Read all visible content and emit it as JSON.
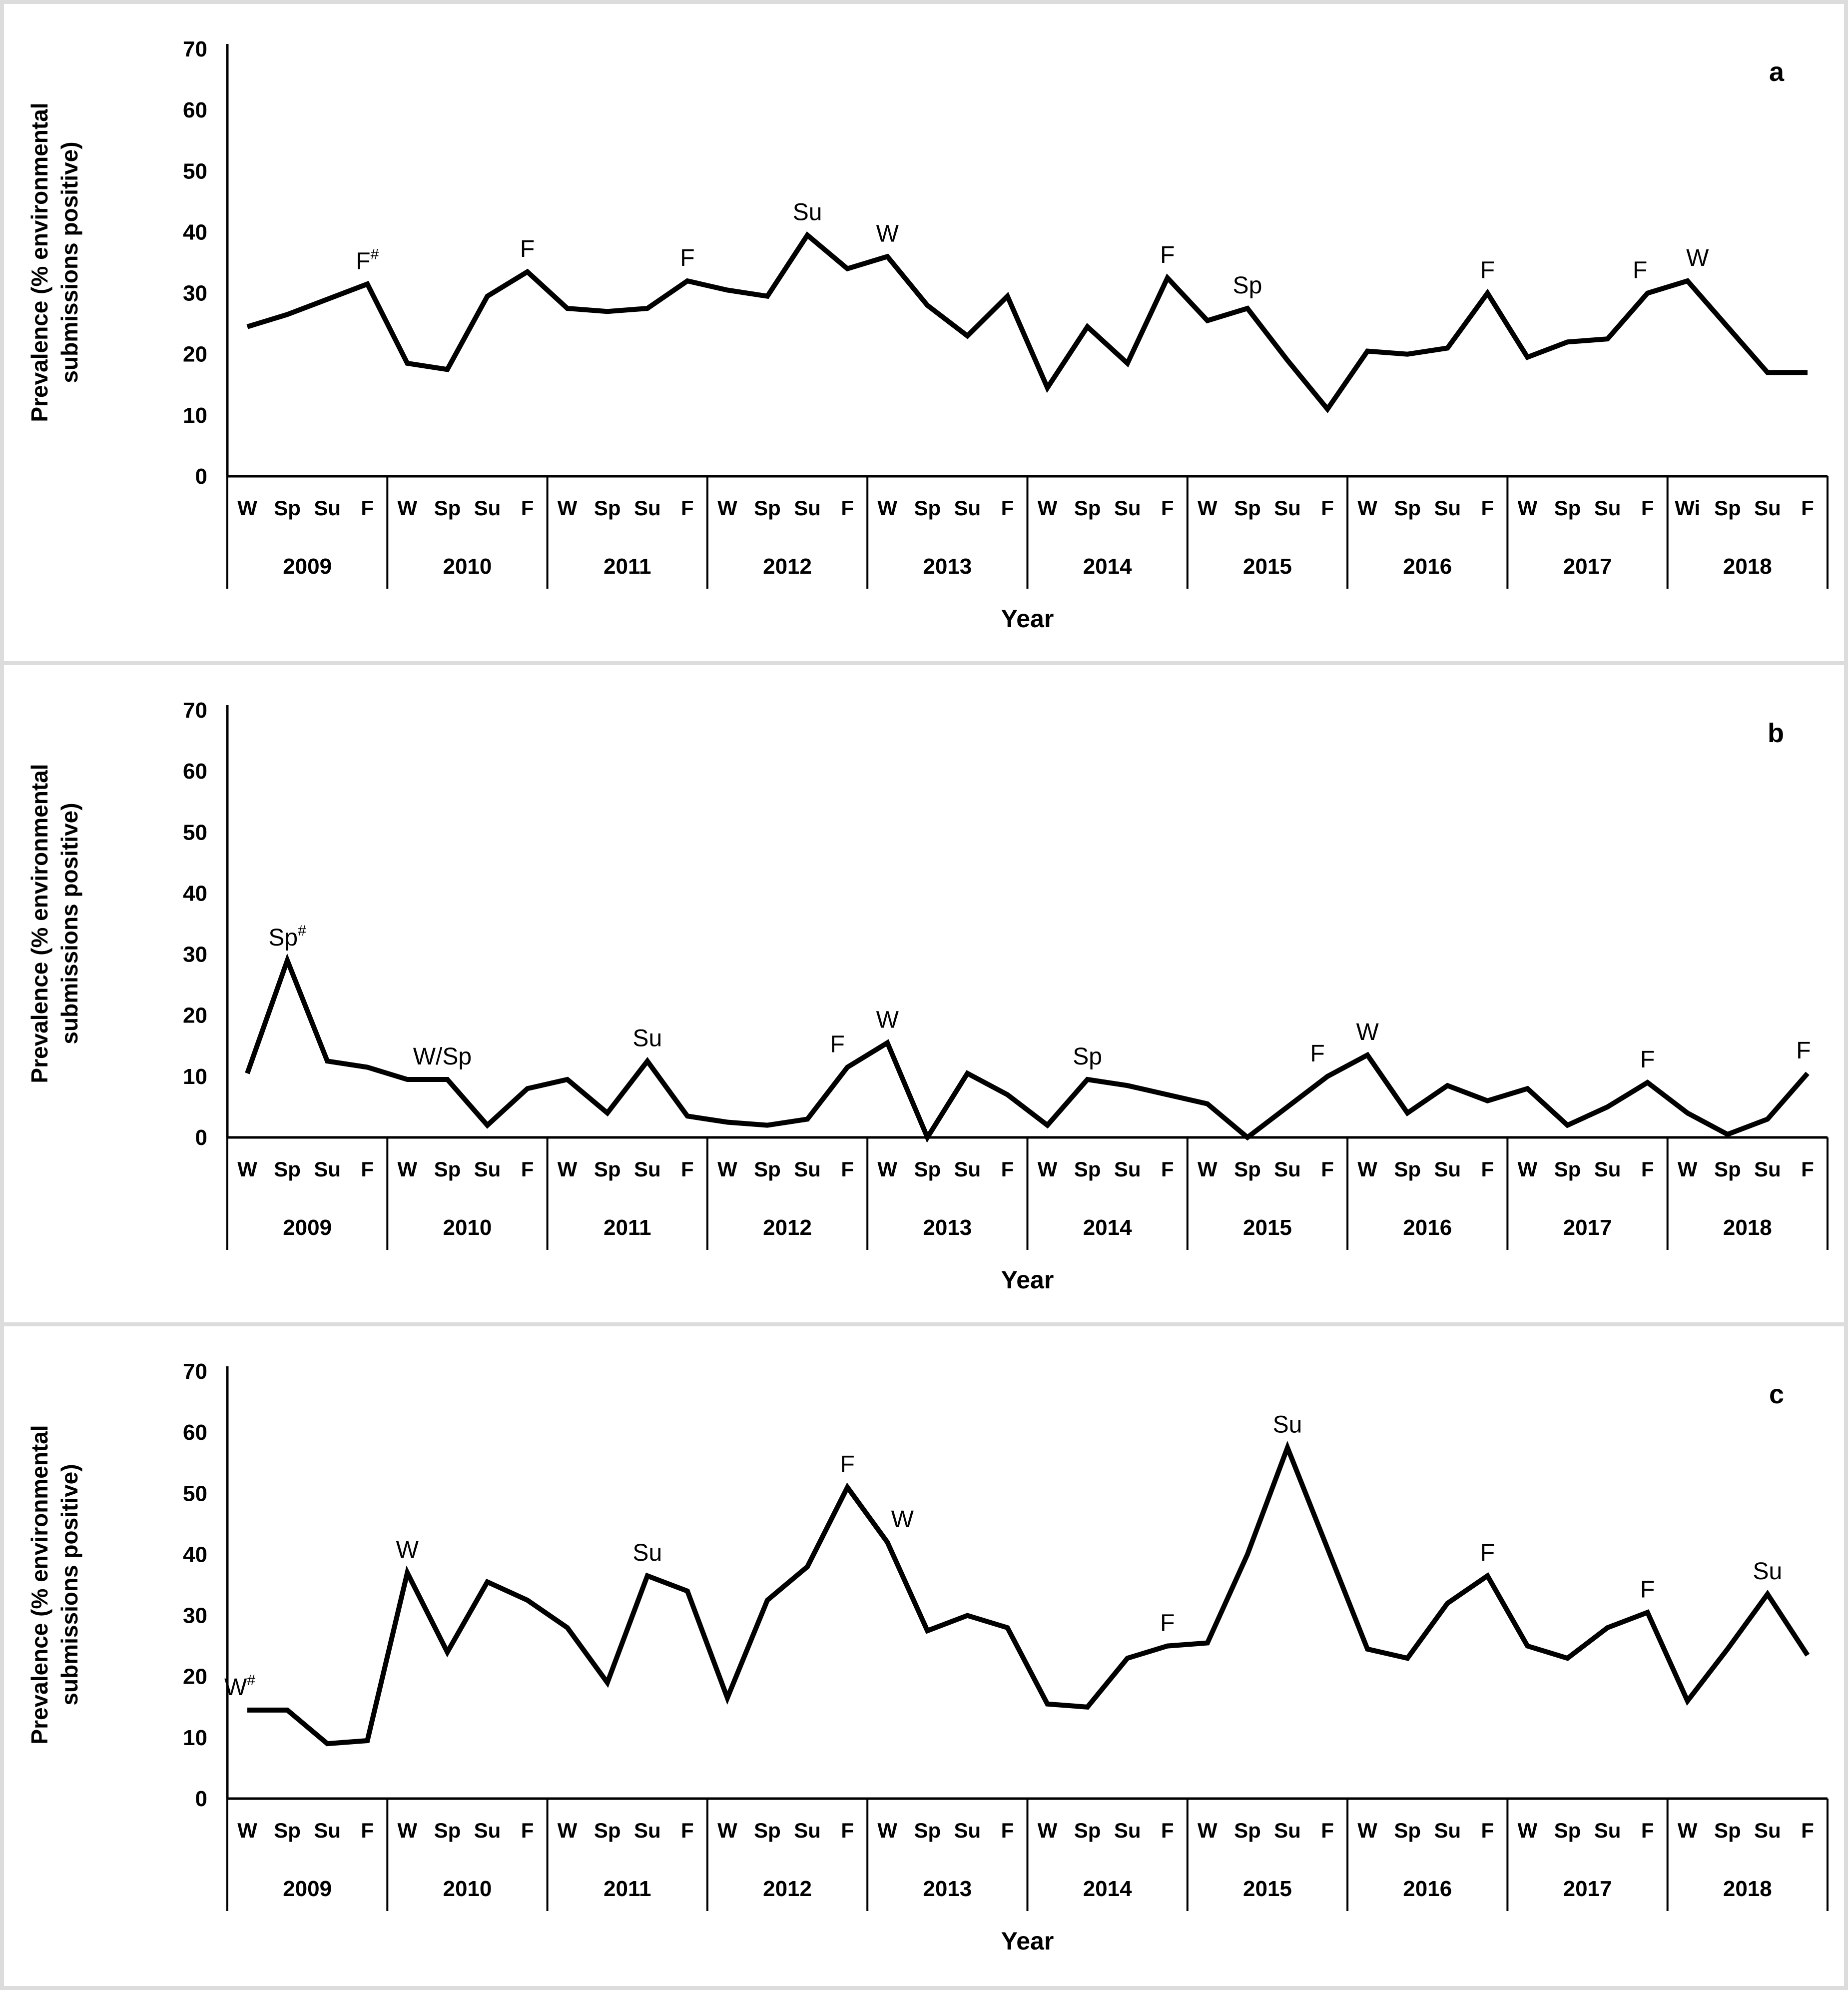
{
  "figure": {
    "xlabel": "Year",
    "ylabel_line1": "Prevalence (% environmental",
    "ylabel_line2": "submissions positive)",
    "years": [
      "2009",
      "2010",
      "2011",
      "2012",
      "2013",
      "2014",
      "2015",
      "2016",
      "2017",
      "2018"
    ],
    "yticks": [
      0,
      10,
      20,
      30,
      40,
      50,
      60,
      70
    ],
    "ylim": [
      0,
      70
    ],
    "line_color": "#000000",
    "frame_color": "#dcdcdc"
  },
  "chart_data": [
    {
      "type": "line",
      "panel_label": "a",
      "xlabel": "Year",
      "ylabel_line1": "Prevalence (% environmental",
      "ylabel_line2": "submissions positive)",
      "ylim": [
        0,
        70
      ],
      "yticks": [
        0,
        10,
        20,
        30,
        40,
        50,
        60,
        70
      ],
      "years": [
        "2009",
        "2010",
        "2011",
        "2012",
        "2013",
        "2014",
        "2015",
        "2016",
        "2017",
        "2018"
      ],
      "season_labels": [
        [
          "W",
          "Sp",
          "Su",
          "F"
        ],
        [
          "W",
          "Sp",
          "Su",
          "F"
        ],
        [
          "W",
          "Sp",
          "Su",
          "F"
        ],
        [
          "W",
          "Sp",
          "Su",
          "F"
        ],
        [
          "W",
          "Sp",
          "Su",
          "F"
        ],
        [
          "W",
          "Sp",
          "Su",
          "F"
        ],
        [
          "W",
          "Sp",
          "Su",
          "F"
        ],
        [
          "W",
          "Sp",
          "Su",
          "F"
        ],
        [
          "W",
          "Sp",
          "Su",
          "F"
        ],
        [
          "Wi",
          "Sp",
          "Su",
          "F"
        ]
      ],
      "series": [
        {
          "name": "Prevalence (% environmental submissions positive)",
          "values": [
            24.5,
            26.5,
            29,
            31.5,
            18.5,
            17.5,
            29.5,
            33.5,
            27.5,
            27,
            27.5,
            32,
            30.5,
            29.5,
            39.5,
            34,
            36,
            28,
            23,
            29.5,
            14.5,
            24.5,
            18.5,
            32.5,
            25.5,
            27.5,
            19,
            11,
            20.5,
            20,
            21,
            30,
            19.5,
            22,
            22.5,
            30,
            32,
            24.5,
            17,
            17
          ]
        }
      ],
      "annotations": [
        {
          "index": 3,
          "label": "F",
          "sup": "#"
        },
        {
          "index": 7,
          "label": "F"
        },
        {
          "index": 11,
          "label": "F"
        },
        {
          "index": 14,
          "label": "Su"
        },
        {
          "index": 16,
          "label": "W"
        },
        {
          "index": 23,
          "label": "F"
        },
        {
          "index": 25,
          "label": "Sp"
        },
        {
          "index": 31,
          "label": "F"
        },
        {
          "index": 35,
          "label": "F",
          "dx": -15
        },
        {
          "index": 36,
          "label": "W",
          "dx": 20
        }
      ]
    },
    {
      "type": "line",
      "panel_label": "b",
      "xlabel": "Year",
      "ylabel_line1": "Prevalence (% environmental",
      "ylabel_line2": "submissions positive)",
      "ylim": [
        0,
        70
      ],
      "yticks": [
        0,
        10,
        20,
        30,
        40,
        50,
        60,
        70
      ],
      "years": [
        "2009",
        "2010",
        "2011",
        "2012",
        "2013",
        "2014",
        "2015",
        "2016",
        "2017",
        "2018"
      ],
      "season_labels": [
        [
          "W",
          "Sp",
          "Su",
          "F"
        ],
        [
          "W",
          "Sp",
          "Su",
          "F"
        ],
        [
          "W",
          "Sp",
          "Su",
          "F"
        ],
        [
          "W",
          "Sp",
          "Su",
          "F"
        ],
        [
          "W",
          "Sp",
          "Su",
          "F"
        ],
        [
          "W",
          "Sp",
          "Su",
          "F"
        ],
        [
          "W",
          "Sp",
          "Su",
          "F"
        ],
        [
          "W",
          "Sp",
          "Su",
          "F"
        ],
        [
          "W",
          "Sp",
          "Su",
          "F"
        ],
        [
          "W",
          "Sp",
          "Su",
          "F"
        ]
      ],
      "series": [
        {
          "name": "Prevalence (% environmental submissions positive)",
          "values": [
            10.5,
            29,
            12.5,
            11.5,
            9.5,
            9.5,
            2,
            8,
            9.5,
            4,
            12.5,
            3.5,
            2.5,
            2,
            3,
            11.5,
            15.5,
            0,
            10.5,
            7,
            2,
            9.5,
            8.5,
            7,
            5.5,
            0,
            5,
            10,
            13.5,
            4,
            8.5,
            6,
            8,
            2,
            5,
            9,
            4,
            0.5,
            3,
            10.5
          ]
        }
      ],
      "annotations": [
        {
          "index": 1,
          "label": "Sp",
          "sup": "#"
        },
        {
          "index": 5,
          "label": "W/Sp",
          "dx": -10
        },
        {
          "index": 10,
          "label": "Su"
        },
        {
          "index": 15,
          "label": "F",
          "dx": -20
        },
        {
          "index": 16,
          "label": "W"
        },
        {
          "index": 21,
          "label": "Sp"
        },
        {
          "index": 27,
          "label": "F",
          "dx": -20
        },
        {
          "index": 28,
          "label": "W"
        },
        {
          "index": 35,
          "label": "F"
        },
        {
          "index": 39,
          "label": "F",
          "dx": -8
        }
      ]
    },
    {
      "type": "line",
      "panel_label": "c",
      "xlabel": "Year",
      "ylabel_line1": "Prevalence (% environmental",
      "ylabel_line2": "submissions positive)",
      "ylim": [
        0,
        70
      ],
      "yticks": [
        0,
        10,
        20,
        30,
        40,
        50,
        60,
        70
      ],
      "years": [
        "2009",
        "2010",
        "2011",
        "2012",
        "2013",
        "2014",
        "2015",
        "2016",
        "2017",
        "2018"
      ],
      "season_labels": [
        [
          "W",
          "Sp",
          "Su",
          "F"
        ],
        [
          "W",
          "Sp",
          "Su",
          "F"
        ],
        [
          "W",
          "Sp",
          "Su",
          "F"
        ],
        [
          "W",
          "Sp",
          "Su",
          "F"
        ],
        [
          "W",
          "Sp",
          "Su",
          "F"
        ],
        [
          "W",
          "Sp",
          "Su",
          "F"
        ],
        [
          "W",
          "Sp",
          "Su",
          "F"
        ],
        [
          "W",
          "Sp",
          "Su",
          "F"
        ],
        [
          "W",
          "Sp",
          "Su",
          "F"
        ],
        [
          "W",
          "Sp",
          "Su",
          "F"
        ]
      ],
      "series": [
        {
          "name": "Prevalence (% environmental submissions positive)",
          "values": [
            14.5,
            14.5,
            9,
            9.5,
            37,
            24,
            35.5,
            32.5,
            28,
            19,
            36.5,
            34,
            16.5,
            32.5,
            38,
            51,
            42,
            27.5,
            30,
            28,
            15.5,
            15,
            23,
            25,
            25.5,
            40,
            57.5,
            41,
            24.5,
            23,
            32,
            36.5,
            25,
            23,
            28,
            30.5,
            16,
            24.5,
            33.5,
            23.5
          ]
        }
      ],
      "annotations": [
        {
          "index": 0,
          "label": "W",
          "sup": "#",
          "dx": -15
        },
        {
          "index": 4,
          "label": "W"
        },
        {
          "index": 10,
          "label": "Su"
        },
        {
          "index": 15,
          "label": "F"
        },
        {
          "index": 16,
          "label": "W",
          "dx": 30
        },
        {
          "index": 23,
          "label": "F"
        },
        {
          "index": 26,
          "label": "Su"
        },
        {
          "index": 31,
          "label": "F"
        },
        {
          "index": 35,
          "label": "F"
        },
        {
          "index": 38,
          "label": "Su"
        }
      ]
    }
  ]
}
